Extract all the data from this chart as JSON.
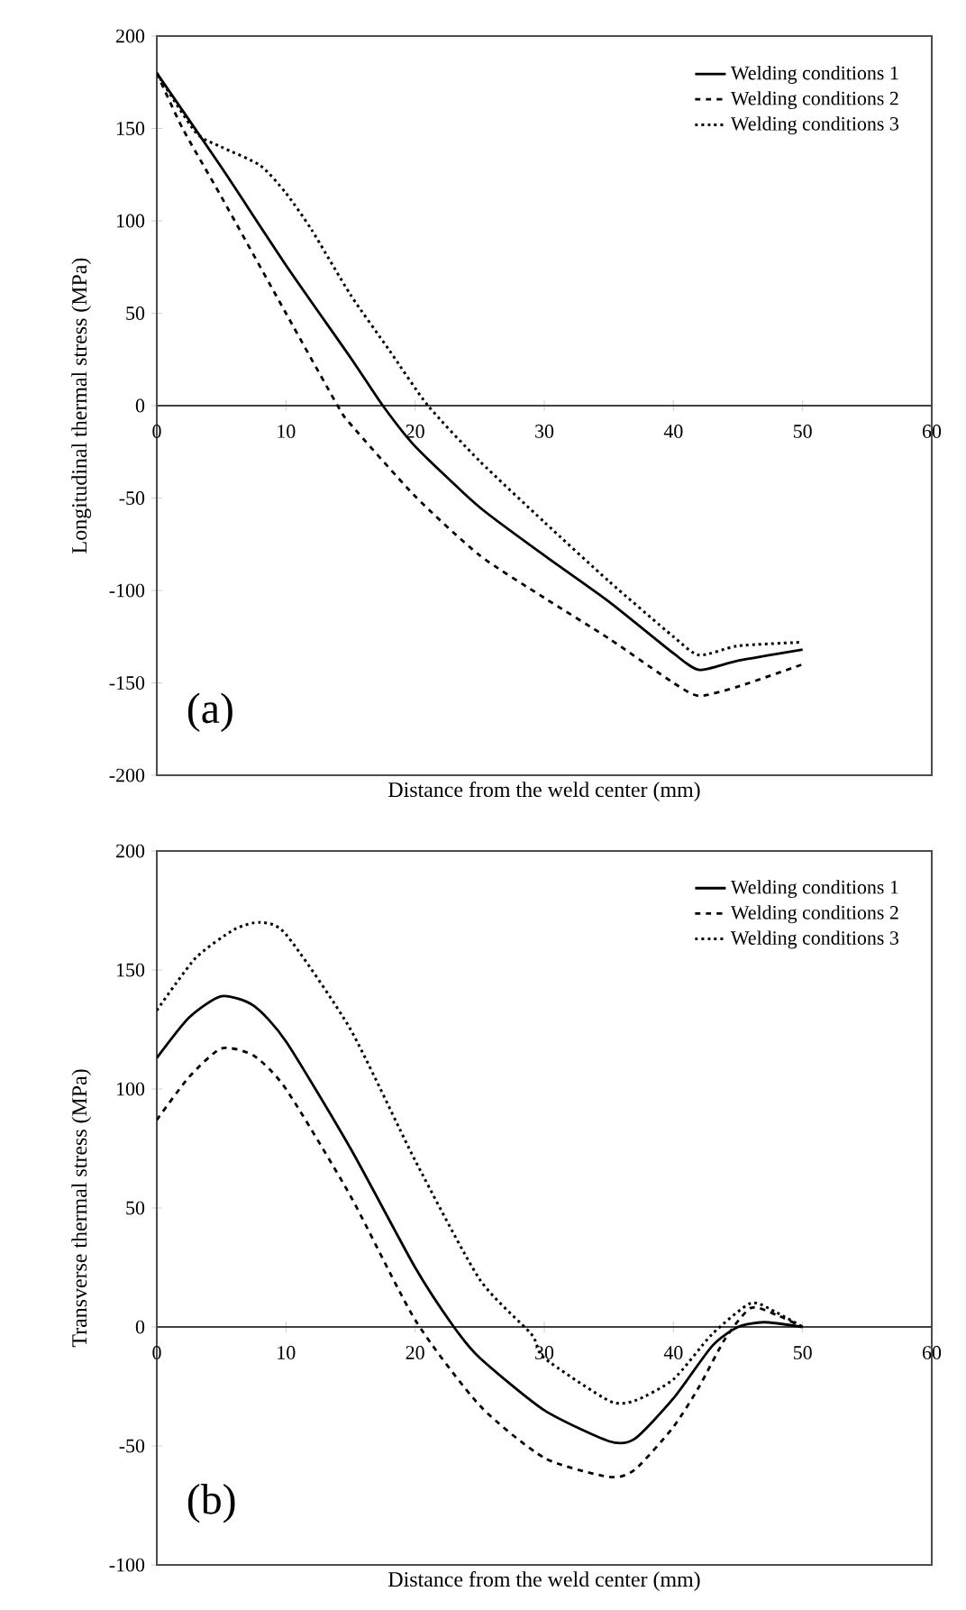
{
  "chart_data": [
    {
      "type": "line",
      "xlabel": "Distance from the weld center (mm)",
      "ylabel": "Longitudinal thermal stress (MPa)",
      "xlim": [
        0,
        60
      ],
      "xticks": [
        0,
        10,
        20,
        30,
        40,
        50,
        60
      ],
      "ylim": [
        -200,
        200
      ],
      "yticks": [
        -200,
        -150,
        -100,
        -50,
        0,
        50,
        100,
        150,
        200
      ],
      "legend": "top right",
      "grid": false,
      "annotations": [
        "(a)"
      ],
      "series": [
        {
          "name": "Welding conditions 1",
          "color": "#000000",
          "line_style": "solid",
          "x": [
            0,
            5,
            10,
            15,
            17.5,
            20,
            25,
            30,
            35,
            40,
            42,
            45,
            50
          ],
          "values": [
            180,
            129,
            76,
            26,
            0,
            -22,
            -55,
            -81,
            -106,
            -134,
            -143,
            -138,
            -132
          ]
        },
        {
          "name": "Welding conditions 2",
          "color": "#000000",
          "line_style": "dashed",
          "x": [
            0,
            2,
            5,
            10,
            14,
            15,
            20,
            25,
            30,
            35,
            40,
            42,
            45,
            50
          ],
          "values": [
            180,
            150,
            113,
            50,
            0,
            -10,
            -49,
            -81,
            -104,
            -126,
            -150,
            -157,
            -152,
            -140
          ]
        },
        {
          "name": "Welding conditions 3",
          "color": "#000000",
          "line_style": "dotted",
          "x": [
            0,
            3,
            5,
            8,
            10,
            12,
            15,
            18,
            21,
            25,
            30,
            35,
            40,
            42,
            45,
            50
          ],
          "values": [
            180,
            148,
            140,
            130,
            115,
            95,
            60,
            30,
            0,
            -30,
            -63,
            -95,
            -125,
            -135,
            -130,
            -128
          ]
        }
      ]
    },
    {
      "type": "line",
      "xlabel": "Distance from the weld center (mm)",
      "ylabel": "Transverse thermal stress (MPa)",
      "xlim": [
        0,
        60
      ],
      "xticks": [
        0,
        10,
        20,
        30,
        40,
        50,
        60
      ],
      "ylim": [
        -100,
        200
      ],
      "yticks": [
        -100,
        -50,
        0,
        50,
        100,
        150,
        200
      ],
      "legend": "top right",
      "grid": false,
      "annotations": [
        "(b)"
      ],
      "series": [
        {
          "name": "Welding conditions 1",
          "color": "#000000",
          "line_style": "solid",
          "x": [
            0,
            2.5,
            5,
            7.5,
            10,
            15,
            20,
            23,
            25,
            30,
            35,
            37,
            40,
            43,
            45,
            47,
            50
          ],
          "values": [
            113,
            130,
            139,
            135,
            120,
            75,
            25,
            0,
            -13,
            -35,
            -48,
            -47,
            -30,
            -8,
            0,
            2,
            0
          ]
        },
        {
          "name": "Welding conditions 2",
          "color": "#000000",
          "line_style": "dashed",
          "x": [
            0,
            2.5,
            5,
            7.5,
            10,
            15,
            20,
            25,
            30,
            35,
            37,
            40,
            42,
            44,
            46,
            48,
            50
          ],
          "values": [
            87,
            105,
            117,
            114,
            100,
            55,
            3,
            -33,
            -55,
            -63,
            -60,
            -42,
            -25,
            -5,
            8,
            5,
            0
          ]
        },
        {
          "name": "Welding conditions 3",
          "color": "#000000",
          "line_style": "dotted",
          "x": [
            0,
            3,
            6,
            8,
            10,
            15,
            20,
            25,
            29,
            30,
            35,
            37,
            40,
            43,
            46,
            48,
            50
          ],
          "values": [
            133,
            155,
            167,
            170,
            165,
            125,
            70,
            20,
            -3,
            -13,
            -31,
            -31,
            -22,
            -3,
            10,
            6,
            0
          ]
        }
      ]
    }
  ]
}
